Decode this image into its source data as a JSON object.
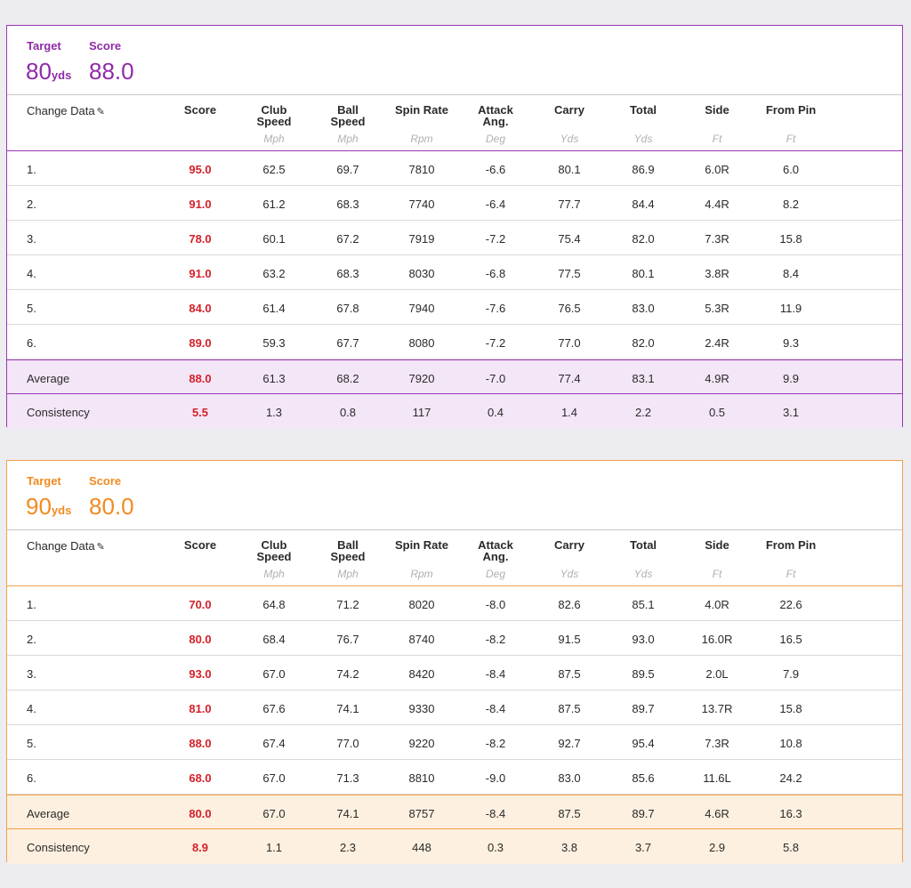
{
  "columns": [
    {
      "label": "Score",
      "unit": ""
    },
    {
      "label": "Club\nSpeed",
      "unit": "Mph"
    },
    {
      "label": "Ball\nSpeed",
      "unit": "Mph"
    },
    {
      "label": "Spin Rate",
      "unit": "Rpm"
    },
    {
      "label": "Attack\nAng.",
      "unit": "Deg"
    },
    {
      "label": "Carry",
      "unit": "Yds"
    },
    {
      "label": "Total",
      "unit": "Yds"
    },
    {
      "label": "Side",
      "unit": "Ft"
    },
    {
      "label": "From Pin",
      "unit": "Ft"
    }
  ],
  "change_data_label": "Change Data",
  "target_label": "Target",
  "score_label": "Score",
  "unit_yds": "yds",
  "colors": {
    "purple": "#8f2aa8",
    "orange": "#f28a1f",
    "score_red": "#d4202a"
  },
  "sessions": [
    {
      "theme": "purple",
      "target": "80",
      "score": "88.0",
      "rows": [
        [
          "1.",
          "95.0",
          "62.5",
          "69.7",
          "7810",
          "-6.6",
          "80.1",
          "86.9",
          "6.0R",
          "6.0"
        ],
        [
          "2.",
          "91.0",
          "61.2",
          "68.3",
          "7740",
          "-6.4",
          "77.7",
          "84.4",
          "4.4R",
          "8.2"
        ],
        [
          "3.",
          "78.0",
          "60.1",
          "67.2",
          "7919",
          "-7.2",
          "75.4",
          "82.0",
          "7.3R",
          "15.8"
        ],
        [
          "4.",
          "91.0",
          "63.2",
          "68.3",
          "8030",
          "-6.8",
          "77.5",
          "80.1",
          "3.8R",
          "8.4"
        ],
        [
          "5.",
          "84.0",
          "61.4",
          "67.8",
          "7940",
          "-7.6",
          "76.5",
          "83.0",
          "5.3R",
          "11.9"
        ],
        [
          "6.",
          "89.0",
          "59.3",
          "67.7",
          "8080",
          "-7.2",
          "77.0",
          "82.0",
          "2.4R",
          "9.3"
        ]
      ],
      "average": [
        "Average",
        "88.0",
        "61.3",
        "68.2",
        "7920",
        "-7.0",
        "77.4",
        "83.1",
        "4.9R",
        "9.9"
      ],
      "consistency": [
        "Consistency",
        "5.5",
        "1.3",
        "0.8",
        "117",
        "0.4",
        "1.4",
        "2.2",
        "0.5",
        "3.1"
      ]
    },
    {
      "theme": "orange",
      "target": "90",
      "score": "80.0",
      "rows": [
        [
          "1.",
          "70.0",
          "64.8",
          "71.2",
          "8020",
          "-8.0",
          "82.6",
          "85.1",
          "4.0R",
          "22.6"
        ],
        [
          "2.",
          "80.0",
          "68.4",
          "76.7",
          "8740",
          "-8.2",
          "91.5",
          "93.0",
          "16.0R",
          "16.5"
        ],
        [
          "3.",
          "93.0",
          "67.0",
          "74.2",
          "8420",
          "-8.4",
          "87.5",
          "89.5",
          "2.0L",
          "7.9"
        ],
        [
          "4.",
          "81.0",
          "67.6",
          "74.1",
          "9330",
          "-8.4",
          "87.5",
          "89.7",
          "13.7R",
          "15.8"
        ],
        [
          "5.",
          "88.0",
          "67.4",
          "77.0",
          "9220",
          "-8.2",
          "92.7",
          "95.4",
          "7.3R",
          "10.8"
        ],
        [
          "6.",
          "68.0",
          "67.0",
          "71.3",
          "8810",
          "-9.0",
          "83.0",
          "85.6",
          "11.6L",
          "24.2"
        ]
      ],
      "average": [
        "Average",
        "80.0",
        "67.0",
        "74.1",
        "8757",
        "-8.4",
        "87.5",
        "89.7",
        "4.6R",
        "16.3"
      ],
      "consistency": [
        "Consistency",
        "8.9",
        "1.1",
        "2.3",
        "448",
        "0.3",
        "3.8",
        "3.7",
        "2.9",
        "5.8"
      ]
    }
  ]
}
